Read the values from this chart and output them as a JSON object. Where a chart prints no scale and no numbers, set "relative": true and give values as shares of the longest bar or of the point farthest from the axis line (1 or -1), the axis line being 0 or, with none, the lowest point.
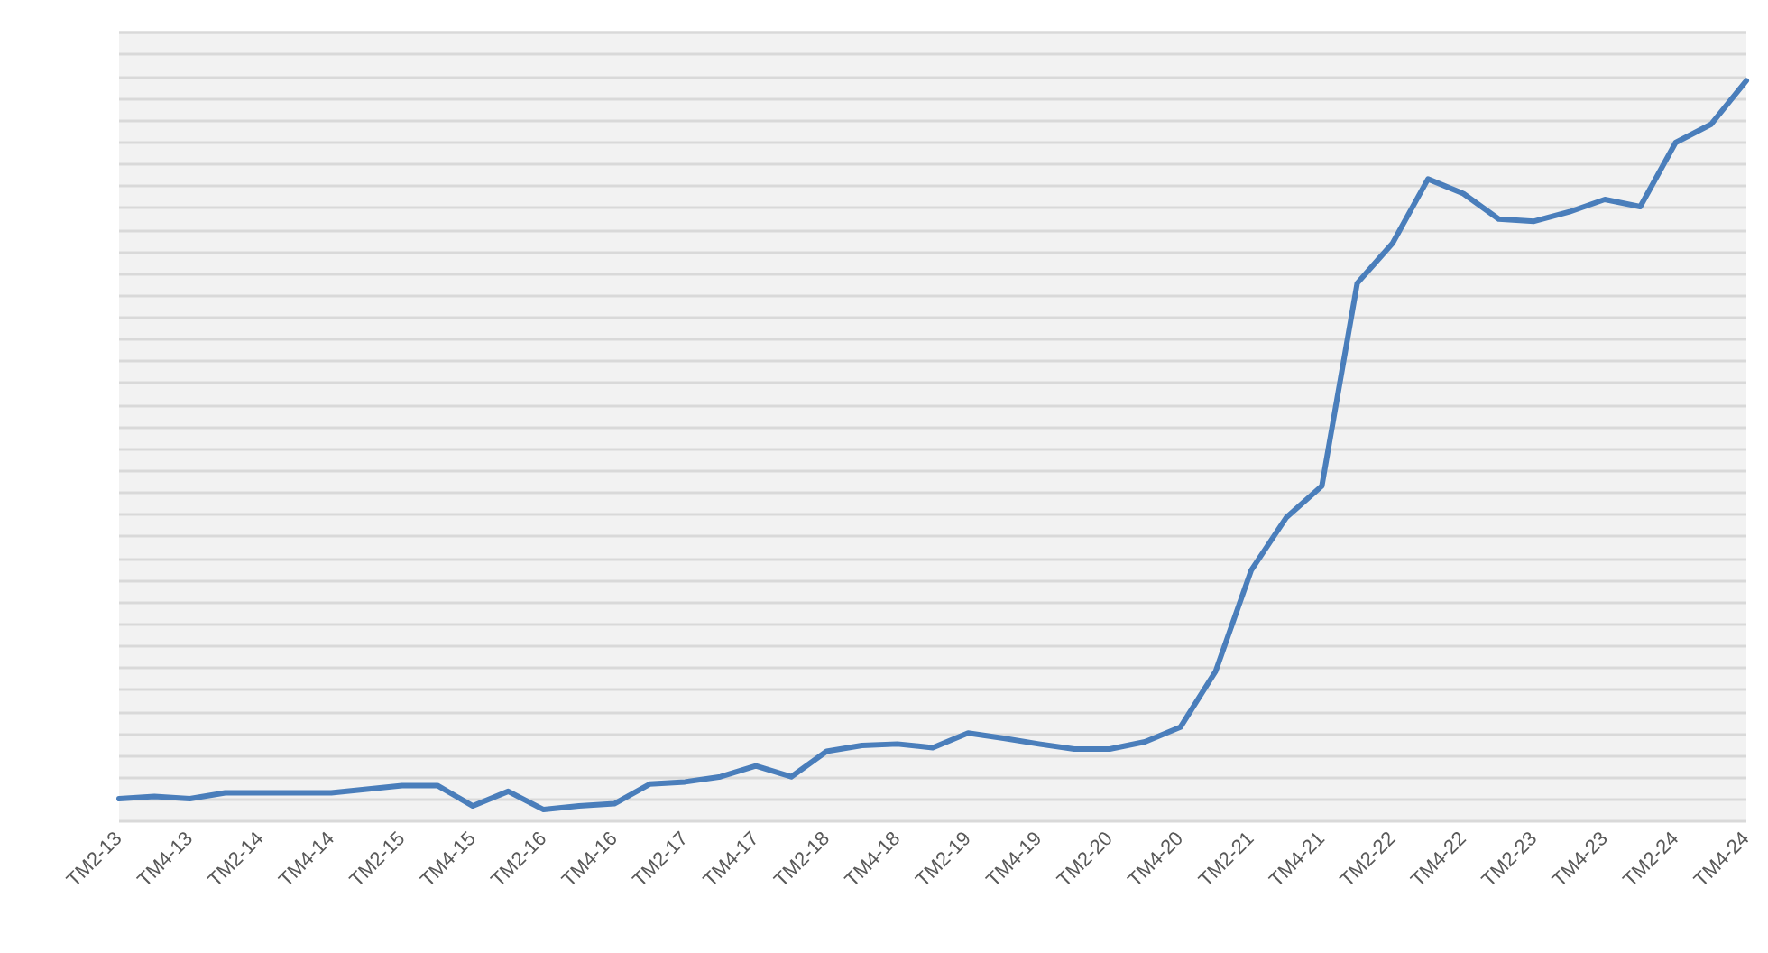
{
  "chart_data": {
    "type": "line",
    "relative": true,
    "grid": "y",
    "marker": "none",
    "line_style": "solid",
    "categories": [
      "TM2-13",
      null,
      "TM4-13",
      null,
      "TM2-14",
      null,
      "TM4-14",
      null,
      "TM2-15",
      null,
      "TM4-15",
      null,
      "TM2-16",
      null,
      "TM4-16",
      null,
      "TM2-17",
      null,
      "TM4-17",
      null,
      "TM2-18",
      null,
      "TM4-18",
      null,
      "TM2-19",
      null,
      "TM4-19",
      null,
      "TM2-20",
      null,
      "TM4-20",
      null,
      "TM2-21",
      null,
      "TM4-21",
      null,
      "TM2-22",
      null,
      "TM4-22",
      null,
      "TM2-23",
      null,
      "TM4-23",
      null,
      "TM2-24",
      null,
      "TM4-24"
    ],
    "series": [
      {
        "color": "#4a7ebb",
        "values": [
          0.015,
          0.018,
          0.015,
          0.023,
          0.023,
          0.023,
          0.023,
          0.028,
          0.033,
          0.033,
          0.005,
          0.025,
          0,
          0.005,
          0.008,
          0.035,
          0.038,
          0.045,
          0.06,
          0.045,
          0.08,
          0.088,
          0.09,
          0.085,
          0.105,
          0.098,
          0.09,
          0.083,
          0.083,
          0.093,
          0.113,
          0.19,
          0.328,
          0.401,
          0.444,
          0.722,
          0.777,
          0.865,
          0.845,
          0.81,
          0.807,
          0.82,
          0.837,
          0.827,
          0.915,
          0.94,
          1
        ]
      }
    ]
  }
}
